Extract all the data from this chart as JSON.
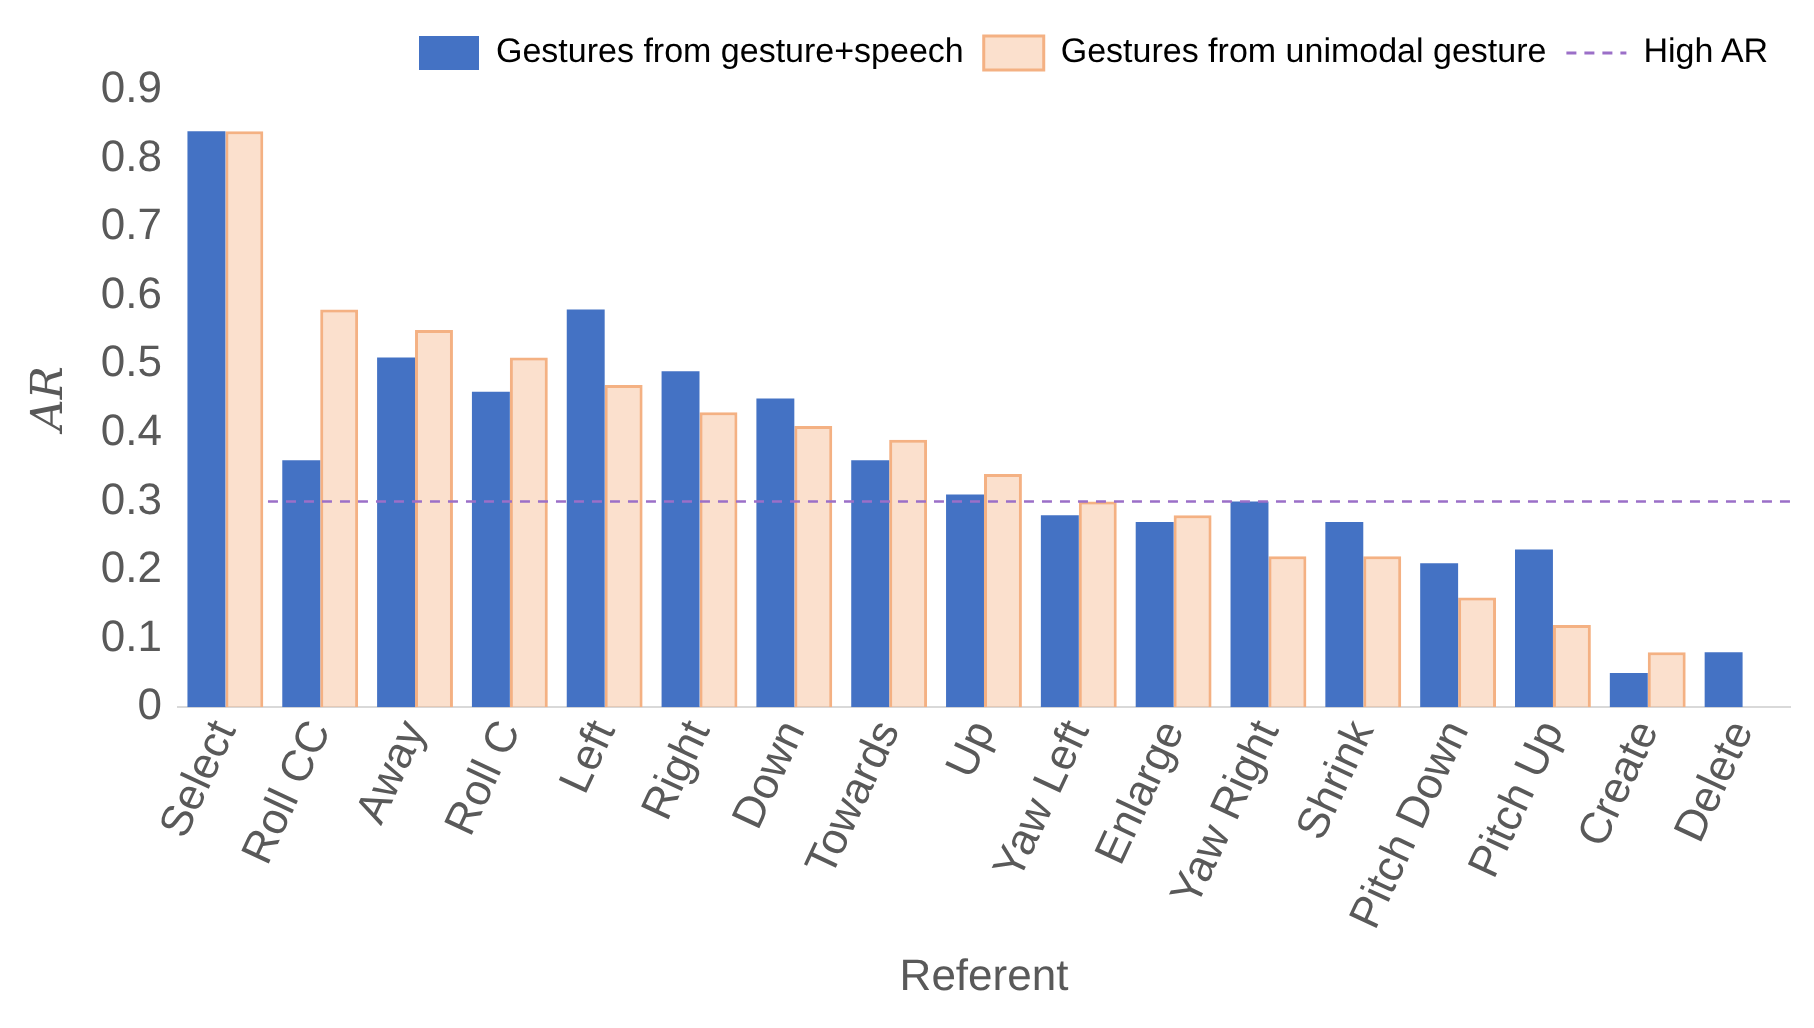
{
  "chart_data": {
    "type": "bar",
    "xlabel": "Referent",
    "ylabel": "AR",
    "categories": [
      "Select",
      "Roll CC",
      "Away",
      "Roll C",
      "Left",
      "Right",
      "Down",
      "Towards",
      "Up",
      "Yaw Left",
      "Enlarge",
      "Yaw Right",
      "Shrink",
      "Pitch Down",
      "Pitch Up",
      "Create",
      "Delete"
    ],
    "series": [
      {
        "name": "Gestures from gesture+speech",
        "color": "#4472c4",
        "values": [
          0.84,
          0.36,
          0.51,
          0.46,
          0.58,
          0.49,
          0.45,
          0.36,
          0.31,
          0.28,
          0.27,
          0.3,
          0.27,
          0.21,
          0.23,
          0.05,
          0.08
        ]
      },
      {
        "name": "Gestures from unimodal gesture",
        "color": "#f4b183",
        "values": [
          0.84,
          0.58,
          0.55,
          0.51,
          0.47,
          0.43,
          0.41,
          0.39,
          0.34,
          0.3,
          0.28,
          0.22,
          0.22,
          0.16,
          0.12,
          0.08,
          null
        ]
      }
    ],
    "ref_lines": [
      {
        "axis": "y",
        "value": 0.3,
        "label": "High AR",
        "color": "#9b6fc8",
        "line_style": "dashed"
      }
    ],
    "ylim": [
      0,
      0.9
    ],
    "yticks": [
      0,
      0.1,
      0.2,
      0.3,
      0.4,
      0.5,
      0.6,
      0.7,
      0.8,
      0.9
    ],
    "grid": false,
    "legend": "top right"
  }
}
